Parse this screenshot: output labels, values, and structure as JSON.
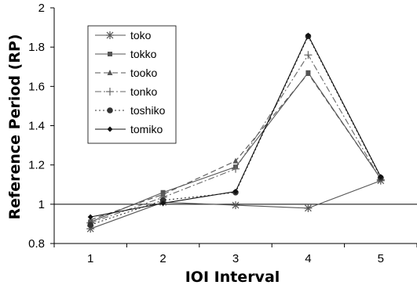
{
  "chart_data": {
    "type": "line",
    "title": "",
    "xlabel": "IOI Interval",
    "ylabel": "Reference Period (RP)",
    "categories": [
      "1",
      "2",
      "3",
      "4",
      "5"
    ],
    "ylim": [
      0.8,
      2
    ],
    "yticks": [
      "0.8",
      "1",
      "1.2",
      "1.4",
      "1.6",
      "1.8",
      "2"
    ],
    "reference_line": 1,
    "grid": false,
    "legend_position": "top-left",
    "series": [
      {
        "name": "toko",
        "values": [
          0.875,
          1.01,
          0.995,
          0.98,
          1.12
        ],
        "marker": "asterisk",
        "dash": "solid",
        "color": "#555555"
      },
      {
        "name": "tokko",
        "values": [
          0.91,
          1.06,
          1.19,
          1.67,
          1.13
        ],
        "marker": "square",
        "dash": "solid",
        "color": "#555555"
      },
      {
        "name": "tooko",
        "values": [
          0.92,
          1.05,
          1.22,
          1.665,
          1.13
        ],
        "marker": "triangle",
        "dash": "dashed",
        "color": "#555555"
      },
      {
        "name": "tonko",
        "values": [
          0.905,
          1.035,
          1.18,
          1.76,
          1.125
        ],
        "marker": "plus",
        "dash": "dashdot",
        "color": "#666666"
      },
      {
        "name": "toshiko",
        "values": [
          0.895,
          1.02,
          1.06,
          1.855,
          1.135
        ],
        "marker": "circle",
        "dash": "dotted",
        "color": "#333333"
      },
      {
        "name": "tomiko",
        "values": [
          0.935,
          1.005,
          1.065,
          1.86,
          1.14
        ],
        "marker": "diamond",
        "dash": "solid",
        "color": "#111111"
      }
    ]
  }
}
